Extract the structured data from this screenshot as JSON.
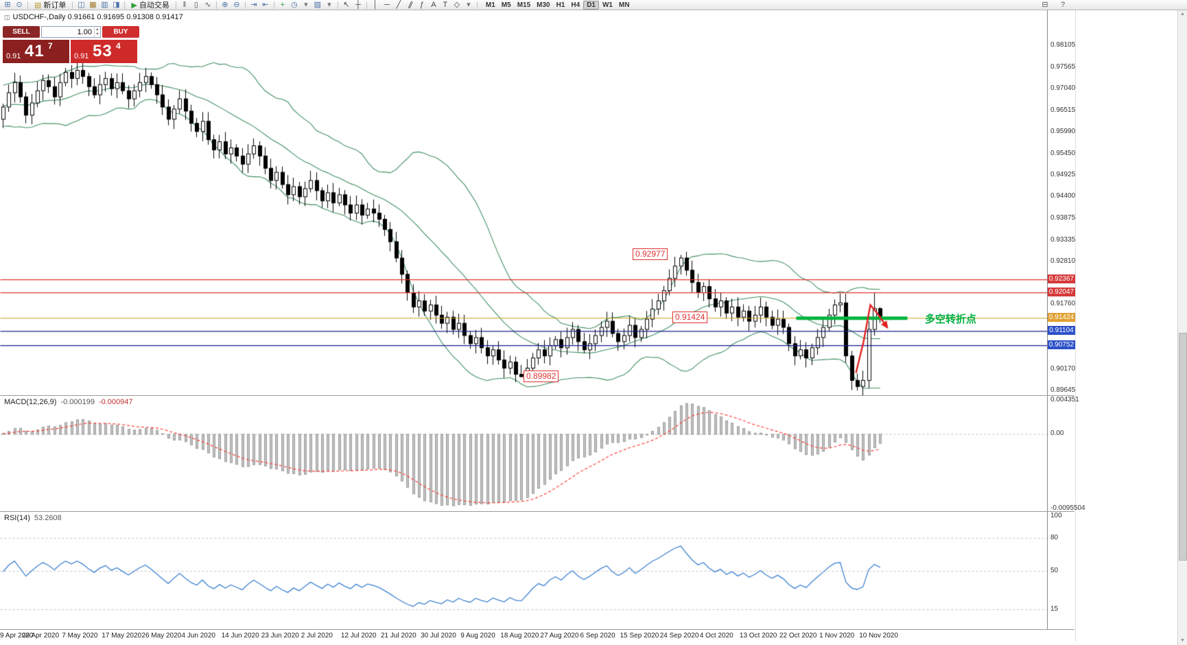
{
  "toolbar": {
    "groups": [
      {
        "items": [
          {
            "name": "new-chart-icon",
            "glyph": "⊞",
            "color": "#4a72a8"
          },
          {
            "name": "chart-preview-icon",
            "glyph": "⊙",
            "color": "#4a72a8"
          }
        ]
      },
      {
        "button": {
          "name": "new-order-button",
          "label": "新订单",
          "glyph": "▤",
          "color": "#b8962e"
        }
      },
      {
        "items": [
          {
            "name": "charts-icon",
            "glyph": "◫",
            "color": "#4a72a8"
          },
          {
            "name": "profiles-icon",
            "glyph": "▦",
            "color": "#a07828"
          },
          {
            "name": "market-watch-icon",
            "glyph": "▥",
            "color": "#4a72a8"
          },
          {
            "name": "data-window-icon",
            "glyph": "◨",
            "color": "#4a72a8"
          }
        ]
      },
      {
        "button": {
          "name": "auto-trading-button",
          "label": "自动交易",
          "glyph": "▶",
          "color": "#2e9e3e"
        }
      },
      {
        "items": [
          {
            "name": "bar-chart-icon",
            "glyph": "‖",
            "color": "#555555"
          },
          {
            "name": "candlestick-chart-icon",
            "glyph": "▯",
            "color": "#555555"
          },
          {
            "name": "line-chart-icon",
            "glyph": "∿",
            "color": "#555555"
          }
        ]
      },
      {
        "items": [
          {
            "name": "zoom-in-icon",
            "glyph": "⊕",
            "color": "#4a72a8"
          },
          {
            "name": "zoom-out-icon",
            "glyph": "⊖",
            "color": "#4a72a8"
          }
        ]
      },
      {
        "items": [
          {
            "name": "auto-scroll-icon",
            "glyph": "⇥",
            "color": "#4a72a8"
          },
          {
            "name": "chart-shift-icon",
            "glyph": "⇤",
            "color": "#4a72a8"
          }
        ]
      },
      {
        "items": [
          {
            "name": "indicators-icon",
            "glyph": "+",
            "color": "#2e9e3e"
          },
          {
            "name": "periods-icon",
            "glyph": "◷",
            "color": "#4a72a8"
          },
          {
            "name": "periods-dropdown-icon",
            "glyph": "▾",
            "color": "#777777"
          },
          {
            "name": "templates-icon",
            "glyph": "▨",
            "color": "#4a72a8"
          },
          {
            "name": "templates-dropdown-icon",
            "glyph": "▾",
            "color": "#777777"
          }
        ]
      },
      {
        "items": [
          {
            "name": "cursor-icon",
            "glyph": "↖",
            "color": "#444444"
          },
          {
            "name": "crosshair-icon",
            "glyph": "┼",
            "color": "#444444"
          }
        ]
      },
      {
        "items": [
          {
            "name": "vertical-line-icon",
            "glyph": "│",
            "color": "#444444"
          },
          {
            "name": "horizontal-line-icon",
            "glyph": "─",
            "color": "#444444"
          },
          {
            "name": "trendline-icon",
            "glyph": "╱",
            "color": "#444444"
          },
          {
            "name": "channel-icon",
            "glyph": "∥",
            "color": "#444444"
          },
          {
            "name": "fibonacci-icon",
            "glyph": "ƒ",
            "color": "#444444"
          },
          {
            "name": "text-icon",
            "glyph": "A",
            "color": "#444444"
          },
          {
            "name": "label-icon",
            "glyph": "T",
            "color": "#444444"
          },
          {
            "name": "shapes-icon",
            "glyph": "◇",
            "color": "#444444"
          },
          {
            "name": "shapes-dropdown-icon",
            "glyph": "▾",
            "color": "#777777"
          }
        ]
      }
    ],
    "timeframes": {
      "items": [
        "M1",
        "M5",
        "M15",
        "M30",
        "H1",
        "H4",
        "D1",
        "W1",
        "MN"
      ],
      "active": "D1"
    },
    "right_icons": [
      {
        "name": "print-icon",
        "glyph": "⊟",
        "color": "#555555"
      },
      {
        "name": "help-icon",
        "glyph": "?",
        "color": "#555555"
      }
    ]
  },
  "symbol_info": "USDCHF-,Daily  0.91661 0.91695 0.91308 0.91417",
  "symbol_icon_glyph": "◫",
  "trade_panel": {
    "sell_label": "SELL",
    "buy_label": "BUY",
    "volume": "1.00",
    "spinner_up": "▴",
    "spinner_down": "▾",
    "sell_price": {
      "prefix": "0.91",
      "big": "41",
      "sup": "7"
    },
    "buy_price": {
      "prefix": "0.91",
      "big": "53",
      "sup": "4"
    }
  },
  "macd_panel": {
    "label": "MACD(12,26,9)",
    "value_main": "-0.000199",
    "value_signal": "-0.000947",
    "scale": [
      "0.004351",
      "0.00",
      "-0.0095504"
    ]
  },
  "rsi_panel": {
    "label": "RSI(14)",
    "value": "53.2608",
    "scale": [
      "100",
      "80",
      "50",
      "15"
    ],
    "levels": [
      80,
      50,
      15
    ]
  },
  "scrollbar": {
    "up_glyph": "▲",
    "down_glyph": "▼"
  },
  "colors": {
    "bull": "#ffffff",
    "bear": "#000000",
    "outline": "#000000",
    "bollinger": "#3f8f63",
    "hline_red": "#e03030",
    "hline_gold": "#c8a020",
    "hline_navy": "#1a1a8c",
    "turning_line": "#00b43c",
    "arrow": "#e02020",
    "macd_hist": "#c4c4c4",
    "macd_hist_border": "#9a9a9a",
    "macd_signal": "#ff3b30",
    "rsi_line": "#3c80d0",
    "level_dash": "#c0c0c0",
    "badge_red": "#d63a3a",
    "badge_gold": "#e0a030",
    "badge_blue": "#2b50c8"
  },
  "chart_data": {
    "type": "candlestick",
    "symbol": "USDCHF",
    "period": "Daily",
    "price_ticks": [
      "0.98105",
      "0.97565",
      "0.97040",
      "0.96515",
      "0.95990",
      "0.95450",
      "0.94925",
      "0.94400",
      "0.93875",
      "0.93335",
      "0.92810",
      "0.91760",
      "0.90170",
      "0.89645"
    ],
    "date_ticks": [
      "9 Apr 2020",
      "28 Apr 2020",
      "7 May 2020",
      "17 May 2020",
      "26 May 2020",
      "4 Jun 2020",
      "14 Jun 2020",
      "23 Jun 2020",
      "2 Jul 2020",
      "12 Jul 2020",
      "21 Jul 2020",
      "30 Jul 2020",
      "9 Aug 2020",
      "18 Aug 2020",
      "27 Aug 2020",
      "6 Sep 2020",
      "15 Sep 2020",
      "24 Sep 2020",
      "4 Oct 2020",
      "13 Oct 2020",
      "22 Oct 2020",
      "1 Nov 2020",
      "10 Nov 2020"
    ],
    "first_open": 0.963,
    "closes": [
      0.966,
      0.9695,
      0.972,
      0.9685,
      0.964,
      0.967,
      0.97,
      0.9725,
      0.971,
      0.9685,
      0.972,
      0.9745,
      0.973,
      0.975,
      0.9735,
      0.971,
      0.969,
      0.9715,
      0.973,
      0.9705,
      0.972,
      0.97,
      0.968,
      0.97,
      0.972,
      0.9735,
      0.9715,
      0.969,
      0.966,
      0.963,
      0.9655,
      0.968,
      0.965,
      0.962,
      0.96,
      0.9625,
      0.958,
      0.9555,
      0.9575,
      0.9545,
      0.956,
      0.954,
      0.952,
      0.9545,
      0.9565,
      0.954,
      0.951,
      0.948,
      0.95,
      0.947,
      0.9445,
      0.9465,
      0.944,
      0.946,
      0.948,
      0.9455,
      0.943,
      0.945,
      0.9425,
      0.9445,
      0.942,
      0.94,
      0.942,
      0.9395,
      0.941,
      0.94,
      0.9385,
      0.936,
      0.933,
      0.929,
      0.925,
      0.9205,
      0.917,
      0.9185,
      0.916,
      0.9175,
      0.915,
      0.913,
      0.9145,
      0.9115,
      0.913,
      0.91,
      0.908,
      0.9095,
      0.907,
      0.905,
      0.9065,
      0.904,
      0.902,
      0.9035,
      0.9005,
      0.8999,
      0.902,
      0.9045,
      0.9065,
      0.905,
      0.9075,
      0.909,
      0.907,
      0.9095,
      0.9115,
      0.9085,
      0.9065,
      0.908,
      0.91,
      0.912,
      0.9135,
      0.9105,
      0.9085,
      0.91,
      0.9125,
      0.9095,
      0.9115,
      0.914,
      0.9165,
      0.9185,
      0.921,
      0.924,
      0.927,
      0.929,
      0.926,
      0.923,
      0.9205,
      0.922,
      0.919,
      0.917,
      0.9185,
      0.9155,
      0.917,
      0.9145,
      0.916,
      0.9135,
      0.915,
      0.917,
      0.9145,
      0.9125,
      0.914,
      0.912,
      0.908,
      0.905,
      0.9065,
      0.9045,
      0.907,
      0.9095,
      0.912,
      0.915,
      0.9175,
      0.918,
      0.905,
      0.899,
      0.8975,
      0.899,
      0.9115,
      0.9166,
      0.91417
    ],
    "key_extremes": {
      "91": {
        "low": 0.89982
      },
      "119": {
        "high": 0.92977
      },
      "150": {
        "low": 0.8965
      },
      "153": {
        "high": 0.9206
      },
      "154": {
        "high": 0.91695,
        "low": 0.91308
      }
    },
    "indicators": {
      "bollinger": {
        "period": 20,
        "deviation": 2
      },
      "macd": [
        12,
        26,
        9
      ],
      "rsi": 14
    },
    "overlays": {
      "hlines": [
        {
          "price": 0.92367,
          "color": "#e03030"
        },
        {
          "price": 0.92047,
          "color": "#e03030"
        },
        {
          "price": 0.91424,
          "color": "#c8a020"
        },
        {
          "price": 0.91104,
          "color": "#1a1a8c"
        },
        {
          "price": 0.90752,
          "color": "#1a1a8c"
        }
      ],
      "axis_badges": [
        {
          "text": "0.92367",
          "color": "#d63a3a"
        },
        {
          "text": "0.92047",
          "color": "#d63a3a"
        },
        {
          "text": "0.91424",
          "color": "#e0a030"
        },
        {
          "text": "0.91104",
          "color": "#2b50c8"
        },
        {
          "text": "0.90752",
          "color": "#2b50c8"
        }
      ],
      "labels": [
        {
          "text": "0.92977"
        },
        {
          "text": "0.91424"
        },
        {
          "text": "0.89982"
        }
      ],
      "turning_point_text": "多空转折点",
      "turning_line_price": 0.91424
    }
  }
}
